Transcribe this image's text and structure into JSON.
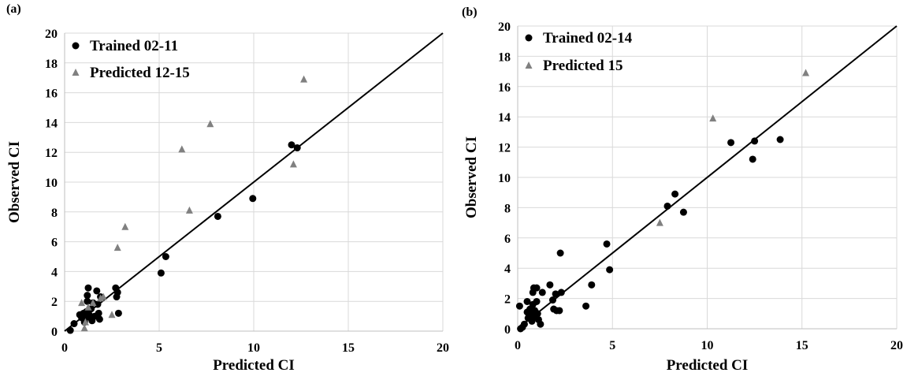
{
  "chart_data": [
    {
      "type": "scatter",
      "panel_label": "(a)",
      "xlabel": "Predicted CI",
      "ylabel": "Observed CI",
      "xlim": [
        0,
        20
      ],
      "ylim": [
        0,
        20
      ],
      "x_ticks": [
        "0",
        "5",
        "10",
        "15",
        "20"
      ],
      "y_ticks": [
        "0",
        "2",
        "4",
        "6",
        "8",
        "10",
        "12",
        "14",
        "16",
        "18",
        "20"
      ],
      "grid": true,
      "legend_position": "top-left",
      "reference_line": {
        "x": [
          0,
          20
        ],
        "y": [
          0,
          20
        ]
      },
      "series": [
        {
          "name": "Trained 02-11",
          "marker": "circle",
          "color": "#000000",
          "points": [
            [
              0.3,
              0.05
            ],
            [
              0.5,
              0.5
            ],
            [
              0.8,
              1.1
            ],
            [
              0.9,
              0.9
            ],
            [
              1.0,
              1.2
            ],
            [
              1.05,
              0.6
            ],
            [
              1.1,
              0.9
            ],
            [
              1.15,
              1.3
            ],
            [
              1.2,
              2.0
            ],
            [
              1.2,
              2.4
            ],
            [
              1.25,
              2.9
            ],
            [
              1.3,
              1.1
            ],
            [
              1.35,
              0.9
            ],
            [
              1.4,
              1.5
            ],
            [
              1.45,
              0.7
            ],
            [
              1.5,
              1.9
            ],
            [
              1.6,
              1.0
            ],
            [
              1.7,
              2.7
            ],
            [
              1.75,
              1.8
            ],
            [
              1.8,
              1.2
            ],
            [
              1.85,
              0.8
            ],
            [
              1.9,
              2.3
            ],
            [
              2.7,
              2.9
            ],
            [
              2.75,
              2.3
            ],
            [
              2.8,
              2.6
            ],
            [
              2.85,
              1.2
            ],
            [
              5.1,
              3.9
            ],
            [
              5.35,
              5.0
            ],
            [
              8.1,
              7.7
            ],
            [
              9.95,
              8.9
            ],
            [
              12.0,
              12.5
            ],
            [
              12.3,
              12.3
            ]
          ]
        },
        {
          "name": "Predicted 12-15",
          "marker": "triangle",
          "color": "#808080",
          "points": [
            [
              0.9,
              1.9
            ],
            [
              1.05,
              0.2
            ],
            [
              1.1,
              0.6
            ],
            [
              1.25,
              1.6
            ],
            [
              1.5,
              1.9
            ],
            [
              1.9,
              2.2
            ],
            [
              2.05,
              2.3
            ],
            [
              2.5,
              1.1
            ],
            [
              2.8,
              5.6
            ],
            [
              3.2,
              7.0
            ],
            [
              6.2,
              12.2
            ],
            [
              6.6,
              8.1
            ],
            [
              7.7,
              13.9
            ],
            [
              12.1,
              11.2
            ],
            [
              12.65,
              16.9
            ]
          ]
        }
      ]
    },
    {
      "type": "scatter",
      "panel_label": "(b)",
      "xlabel": "Predicted CI",
      "ylabel": "Observed CI",
      "xlim": [
        0,
        20
      ],
      "ylim": [
        0,
        20
      ],
      "x_ticks": [
        "0",
        "5",
        "10",
        "15",
        "20"
      ],
      "y_ticks": [
        "0",
        "2",
        "4",
        "6",
        "8",
        "10",
        "12",
        "14",
        "16",
        "18",
        "20"
      ],
      "grid": true,
      "legend_position": "top-left",
      "reference_line": {
        "x": [
          0,
          20
        ],
        "y": [
          0,
          20
        ]
      },
      "series": [
        {
          "name": "Trained 02-14",
          "marker": "circle",
          "color": "#000000",
          "points": [
            [
              0.1,
              1.5
            ],
            [
              0.15,
              0.0
            ],
            [
              0.25,
              0.1
            ],
            [
              0.35,
              0.3
            ],
            [
              0.5,
              1.1
            ],
            [
              0.5,
              1.8
            ],
            [
              0.55,
              0.7
            ],
            [
              0.6,
              0.9
            ],
            [
              0.65,
              1.3
            ],
            [
              0.7,
              1.0
            ],
            [
              0.75,
              0.5
            ],
            [
              0.8,
              1.6
            ],
            [
              0.8,
              2.4
            ],
            [
              0.85,
              2.7
            ],
            [
              0.9,
              1.2
            ],
            [
              0.95,
              0.8
            ],
            [
              1.0,
              1.8
            ],
            [
              1.0,
              2.7
            ],
            [
              1.05,
              1.0
            ],
            [
              1.1,
              0.6
            ],
            [
              1.2,
              0.3
            ],
            [
              1.3,
              2.4
            ],
            [
              1.7,
              2.9
            ],
            [
              1.85,
              1.9
            ],
            [
              1.9,
              1.3
            ],
            [
              2.0,
              2.3
            ],
            [
              2.05,
              1.2
            ],
            [
              2.2,
              1.2
            ],
            [
              2.3,
              2.4
            ],
            [
              2.25,
              5.0
            ],
            [
              3.6,
              1.5
            ],
            [
              3.9,
              2.9
            ],
            [
              4.7,
              5.6
            ],
            [
              4.85,
              3.9
            ],
            [
              7.9,
              8.1
            ],
            [
              8.3,
              8.9
            ],
            [
              8.75,
              7.7
            ],
            [
              11.25,
              12.3
            ],
            [
              12.4,
              11.2
            ],
            [
              12.5,
              12.4
            ],
            [
              13.85,
              12.5
            ]
          ]
        },
        {
          "name": "Predicted 15",
          "marker": "triangle",
          "color": "#808080",
          "points": [
            [
              7.5,
              7.0
            ],
            [
              10.3,
              13.9
            ],
            [
              15.2,
              16.9
            ]
          ]
        }
      ]
    }
  ]
}
